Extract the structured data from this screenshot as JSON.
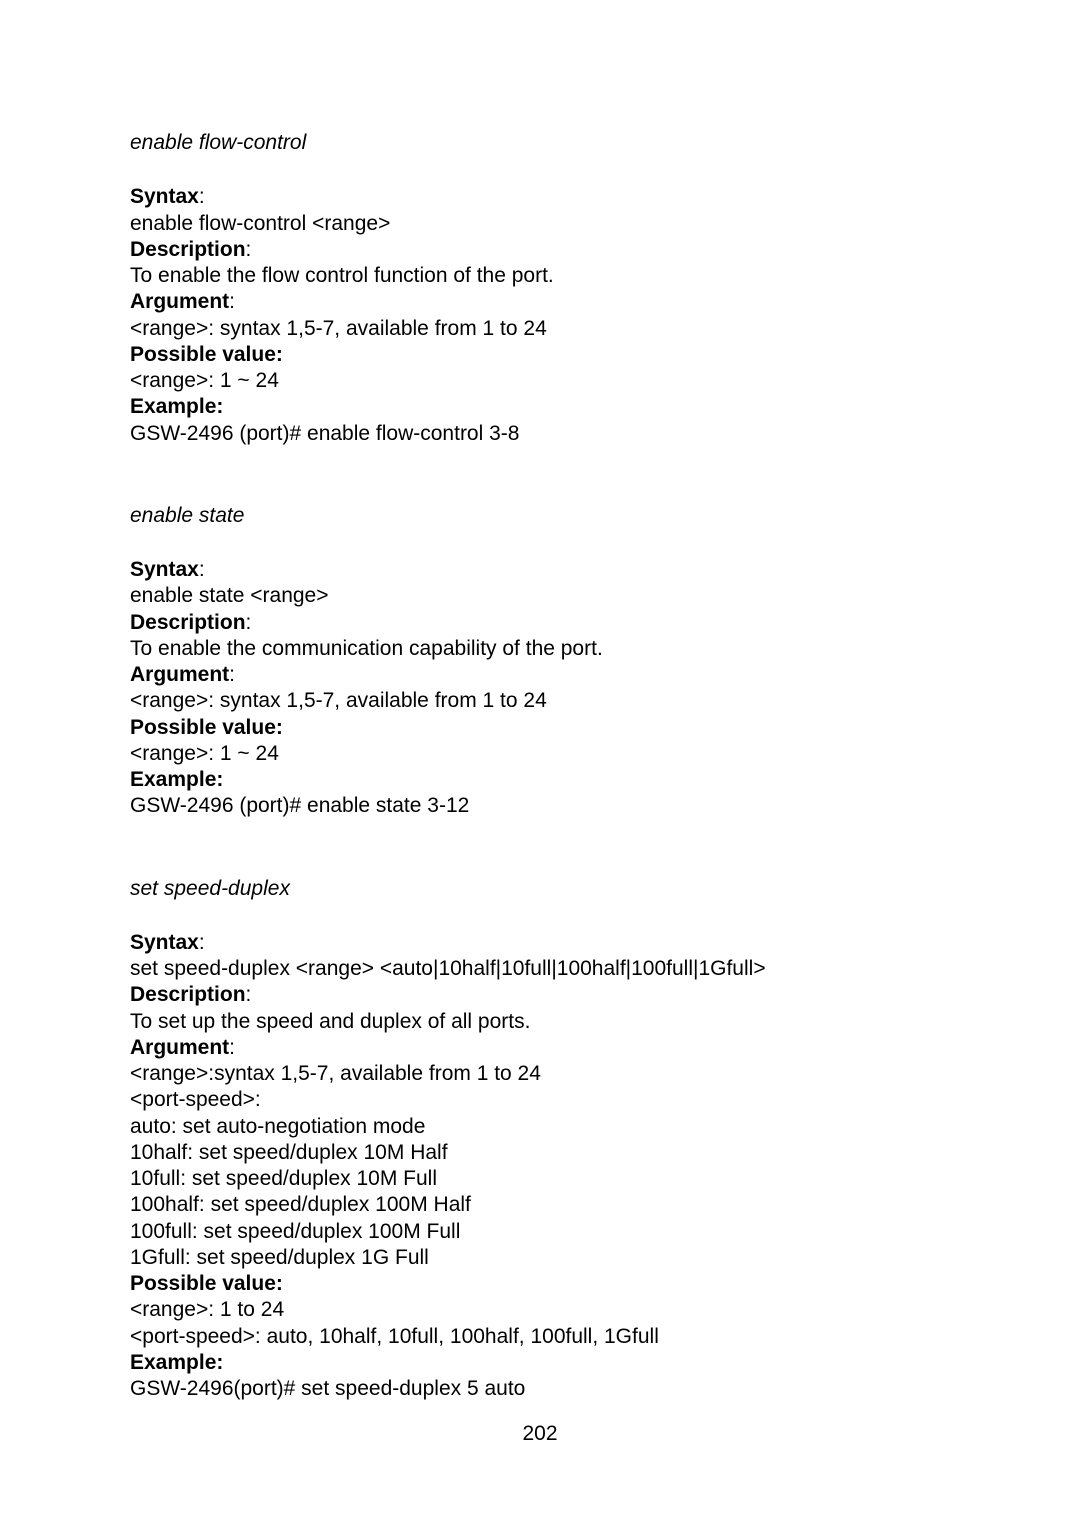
{
  "sections": [
    {
      "title": "enable flow-control",
      "syntax_label": "Syntax",
      "syntax_text": "enable flow-control <range>",
      "description_label": "Description",
      "description_text": "To enable the flow control function of the port.",
      "argument_label": "Argument",
      "argument_lines": [
        "<range>: syntax 1,5-7, available from 1 to 24"
      ],
      "possible_label": "Possible value:",
      "possible_lines": [
        "<range>: 1 ~ 24"
      ],
      "example_label": "Example:",
      "example_lines": [
        "GSW-2496 (port)# enable flow-control 3-8"
      ]
    },
    {
      "title": "enable state",
      "syntax_label": "Syntax",
      "syntax_text": "enable state <range>",
      "description_label": "Description",
      "description_text": "To enable the communication capability of the port.",
      "argument_label": "Argument",
      "argument_lines": [
        "<range>: syntax 1,5-7, available from 1 to 24"
      ],
      "possible_label": "Possible value:",
      "possible_lines": [
        "<range>: 1 ~ 24"
      ],
      "example_label": "Example:",
      "example_lines": [
        "GSW-2496 (port)# enable state 3-12"
      ]
    },
    {
      "title": "set speed-duplex",
      "syntax_label": "Syntax",
      "syntax_text": "set speed-duplex <range> <auto|10half|10full|100half|100full|1Gfull>",
      "description_label": "Description",
      "description_text": "To set up the speed and duplex of all ports.",
      "argument_label": "Argument",
      "argument_lines": [
        "<range>:syntax 1,5-7, available from 1 to 24",
        "<port-speed>:",
        "auto: set auto-negotiation mode",
        "10half: set speed/duplex 10M Half",
        "10full: set speed/duplex 10M Full",
        "100half: set speed/duplex 100M Half",
        "100full: set speed/duplex 100M Full",
        "1Gfull: set speed/duplex 1G Full"
      ],
      "possible_label": "Possible value:",
      "possible_lines": [
        "<range>: 1 to 24",
        "<port-speed>: auto, 10half, 10full, 100half, 100full, 1Gfull"
      ],
      "example_label": "Example:",
      "example_lines": [
        "GSW-2496(port)# set speed-duplex 5 auto"
      ]
    }
  ],
  "page_number": "202"
}
